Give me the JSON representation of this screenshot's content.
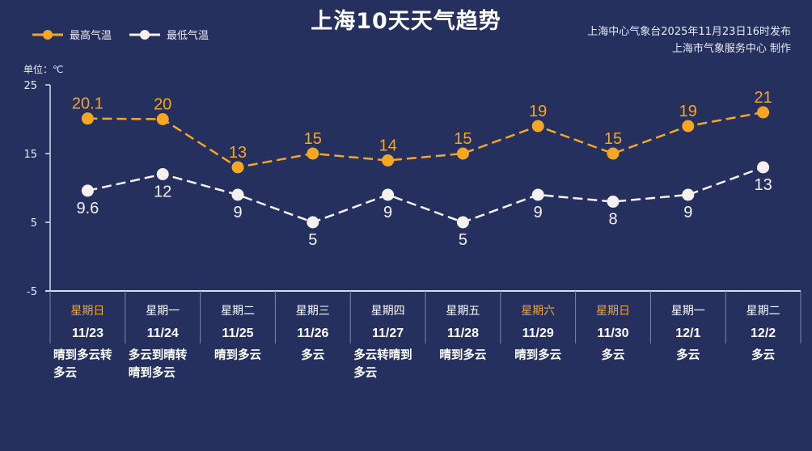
{
  "chart_data": {
    "type": "line",
    "title": "上海10天天气趋势",
    "source_lines": [
      "上海中心气象台2025年11月23日16时发布",
      "上海市气象服务中心  制作"
    ],
    "unit_label": "单位：℃",
    "ylim": [
      -5,
      25
    ],
    "yticks": [
      "25",
      "15",
      "5",
      "-5"
    ],
    "ytick_values": [
      25,
      15,
      5,
      -5
    ],
    "weekdays": [
      "星期日",
      "星期一",
      "星期二",
      "星期三",
      "星期四",
      "星期五",
      "星期六",
      "星期日",
      "星期一",
      "星期二"
    ],
    "weekend_flags": [
      true,
      false,
      false,
      false,
      false,
      false,
      true,
      true,
      false,
      false
    ],
    "categories": [
      "11/23",
      "11/24",
      "11/25",
      "11/26",
      "11/27",
      "11/28",
      "11/29",
      "11/30",
      "12/1",
      "12/2"
    ],
    "weather": [
      "晴到多云转多云",
      "多云到晴转晴到多云",
      "晴到多云",
      "多云",
      "多云转晴到多云",
      "晴到多云",
      "晴到多云",
      "多云",
      "多云",
      "多云"
    ],
    "series": [
      {
        "name": "最高气温",
        "color": "#f5a623",
        "values": [
          20.1,
          20,
          13,
          15,
          14,
          15,
          19,
          15,
          19,
          21
        ]
      },
      {
        "name": "最低气温",
        "color": "#f4f1ee",
        "values": [
          9.6,
          12,
          9,
          5,
          9,
          5,
          9,
          8,
          9,
          13
        ]
      }
    ],
    "legend": "top-left",
    "weekend_color": "#f5a623"
  }
}
